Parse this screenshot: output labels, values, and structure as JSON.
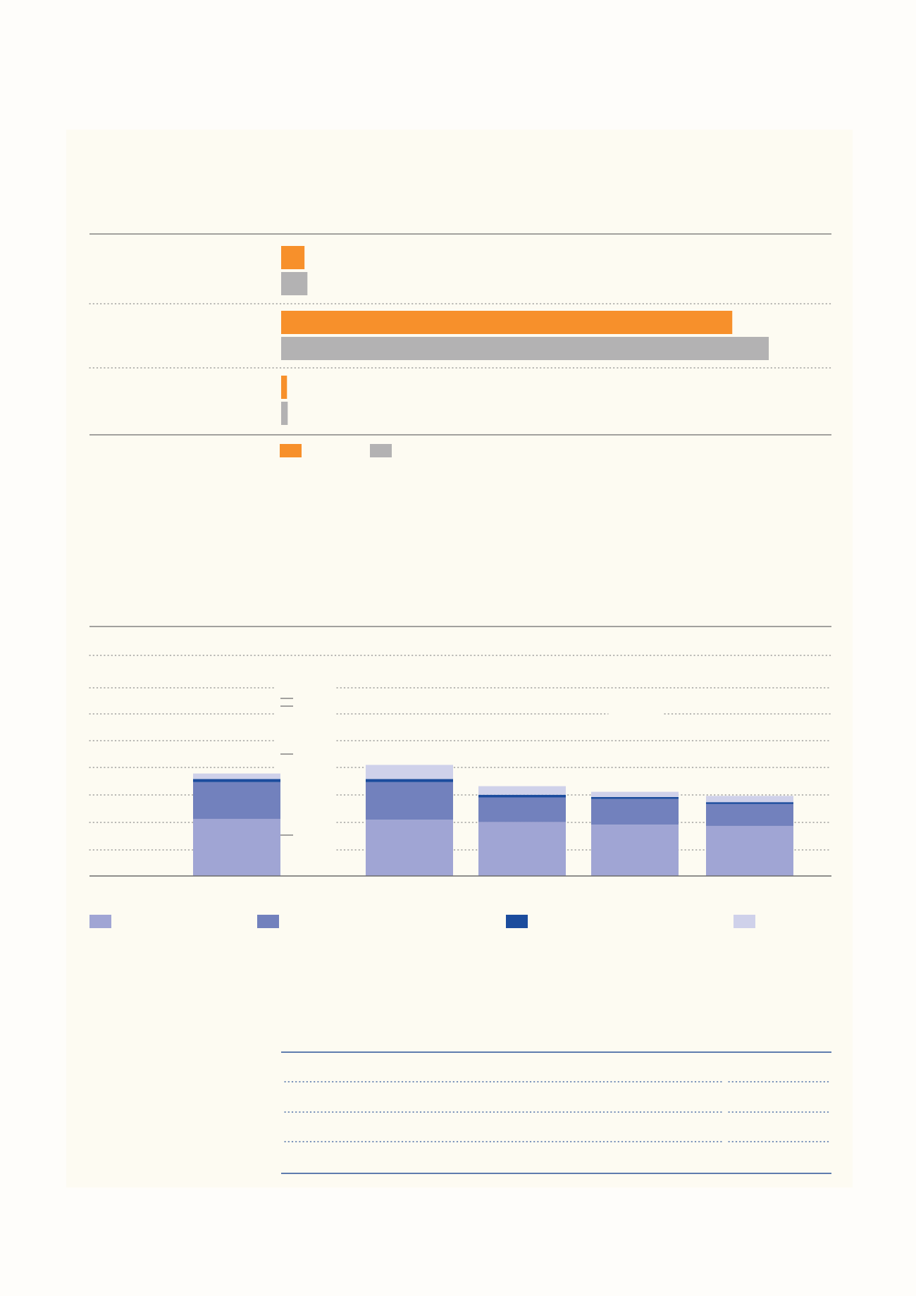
{
  "colors": {
    "panel": "#fdfbf2",
    "orange": "#f7902b",
    "grey": "#b3b2b3",
    "light_blue": "#a0a5d4",
    "mid_blue": "#7281bd",
    "dark_blue": "#1b4c9d",
    "pale_blue": "#cfd1ea",
    "rule": "#6b6b6b",
    "dots": "#8d8d8d",
    "table_rule": "#2a5298"
  },
  "chart_data": [
    {
      "type": "bar",
      "orientation": "horizontal",
      "groups": 3,
      "series": [
        {
          "color": "orange",
          "values": [
            3.2,
            61.8,
            0.8
          ]
        },
        {
          "color": "grey",
          "values": [
            3.6,
            66.8,
            0.9
          ]
        }
      ],
      "xlim": [
        0,
        75
      ],
      "legend": "bottom"
    },
    {
      "type": "bar",
      "stacked": true,
      "gridlines": 8,
      "ylim": [
        0,
        8.5
      ],
      "categories": [
        "",
        "",
        "",
        "",
        ""
      ],
      "series": [
        {
          "color": "light_blue",
          "values": [
            3.65,
            3.6,
            3.45,
            3.28,
            3.2
          ]
        },
        {
          "color": "mid_blue",
          "values": [
            2.35,
            2.4,
            1.57,
            1.65,
            1.4
          ]
        },
        {
          "color": "dark_blue",
          "values": [
            0.2,
            0.2,
            0.17,
            0.12,
            0.12
          ]
        },
        {
          "color": "pale_blue",
          "values": [
            0.35,
            0.9,
            0.55,
            0.33,
            0.4
          ]
        }
      ],
      "legend": "bottom"
    }
  ],
  "table": {
    "rows": 4
  }
}
